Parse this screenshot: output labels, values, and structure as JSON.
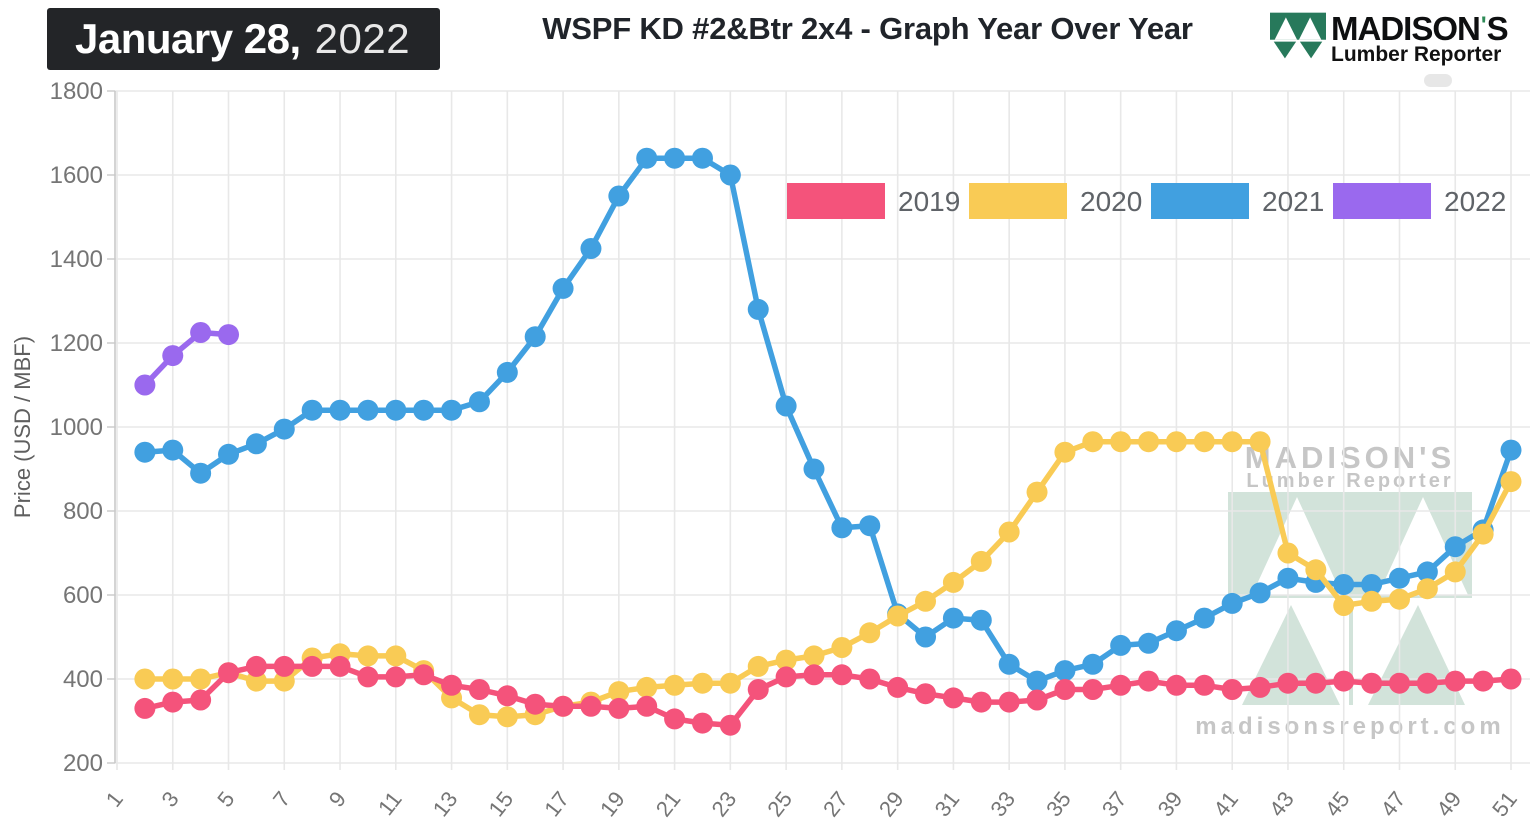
{
  "header": {
    "date_bold": "January 28,",
    "date_year": "2022",
    "title": "WSPF KD #2&Btr 2x4 - Graph Year Over Year",
    "brand_left": "MADISON",
    "brand_apos": "'",
    "brand_right": "S",
    "brand_sub": "Lumber Reporter"
  },
  "watermark": {
    "name_left": "MADISON",
    "name_apos": "'",
    "name_right": "S",
    "subtitle": "Lumber Reporter",
    "url": "madisonsreport.com"
  },
  "colors": {
    "date_box_bg": "#232528",
    "title_text": "#20242a",
    "brand_green": "#27795b",
    "grid": "#e8e8e8",
    "axis_line": "#c9c9c9",
    "tick_label": "#757575",
    "axis_title": "#5f5f5f",
    "legend_label": "#5f6368",
    "watermark_green": "#d2e3da",
    "watermark_gray": "#c6c6c6"
  },
  "chart_data": {
    "type": "line",
    "title": "WSPF KD #2&Btr 2x4 - Graph Year Over Year",
    "xlabel": "",
    "ylabel": "Price (USD / MBF)",
    "ylim": [
      200,
      1800
    ],
    "y_ticks": [
      200,
      400,
      600,
      800,
      1000,
      1200,
      1400,
      1600,
      1800
    ],
    "x_tick_labels": [
      1,
      3,
      5,
      7,
      9,
      11,
      13,
      15,
      17,
      19,
      21,
      23,
      25,
      27,
      29,
      31,
      33,
      35,
      37,
      39,
      41,
      43,
      45,
      47,
      49,
      51
    ],
    "x_start_week": 2,
    "grid": true,
    "legend_position": "top-inside",
    "marker": "circle",
    "series": [
      {
        "name": "2019",
        "color": "#F4537B",
        "values": [
          330,
          345,
          350,
          415,
          430,
          430,
          430,
          430,
          405,
          405,
          410,
          385,
          375,
          360,
          340,
          335,
          335,
          330,
          335,
          305,
          295,
          290,
          375,
          405,
          410,
          410,
          400,
          380,
          365,
          355,
          345,
          345,
          350,
          375,
          375,
          385,
          395,
          385,
          385,
          375,
          380,
          390,
          390,
          395,
          390,
          390,
          390,
          395,
          395,
          400
        ]
      },
      {
        "name": "2020",
        "color": "#F9CB55",
        "values": [
          400,
          400,
          400,
          415,
          395,
          395,
          450,
          460,
          455,
          455,
          420,
          355,
          315,
          310,
          315,
          335,
          345,
          370,
          380,
          385,
          390,
          390,
          430,
          445,
          455,
          475,
          510,
          550,
          585,
          630,
          680,
          750,
          845,
          940,
          965,
          965,
          965,
          965,
          965,
          965,
          965,
          700,
          660,
          575,
          585,
          590,
          615,
          655,
          745,
          870
        ]
      },
      {
        "name": "2021",
        "color": "#41A0E0",
        "values": [
          940,
          945,
          890,
          935,
          960,
          995,
          1040,
          1040,
          1040,
          1040,
          1040,
          1040,
          1060,
          1130,
          1215,
          1330,
          1425,
          1550,
          1640,
          1640,
          1640,
          1600,
          1280,
          1050,
          900,
          760,
          765,
          555,
          500,
          545,
          540,
          435,
          395,
          420,
          435,
          480,
          485,
          515,
          545,
          580,
          605,
          640,
          630,
          625,
          625,
          640,
          655,
          715,
          755,
          945
        ]
      },
      {
        "name": "2022",
        "color": "#9A69EE",
        "weeks": [
          2,
          3,
          4,
          5
        ],
        "values": [
          1100,
          1170,
          1225,
          1220
        ]
      }
    ]
  }
}
